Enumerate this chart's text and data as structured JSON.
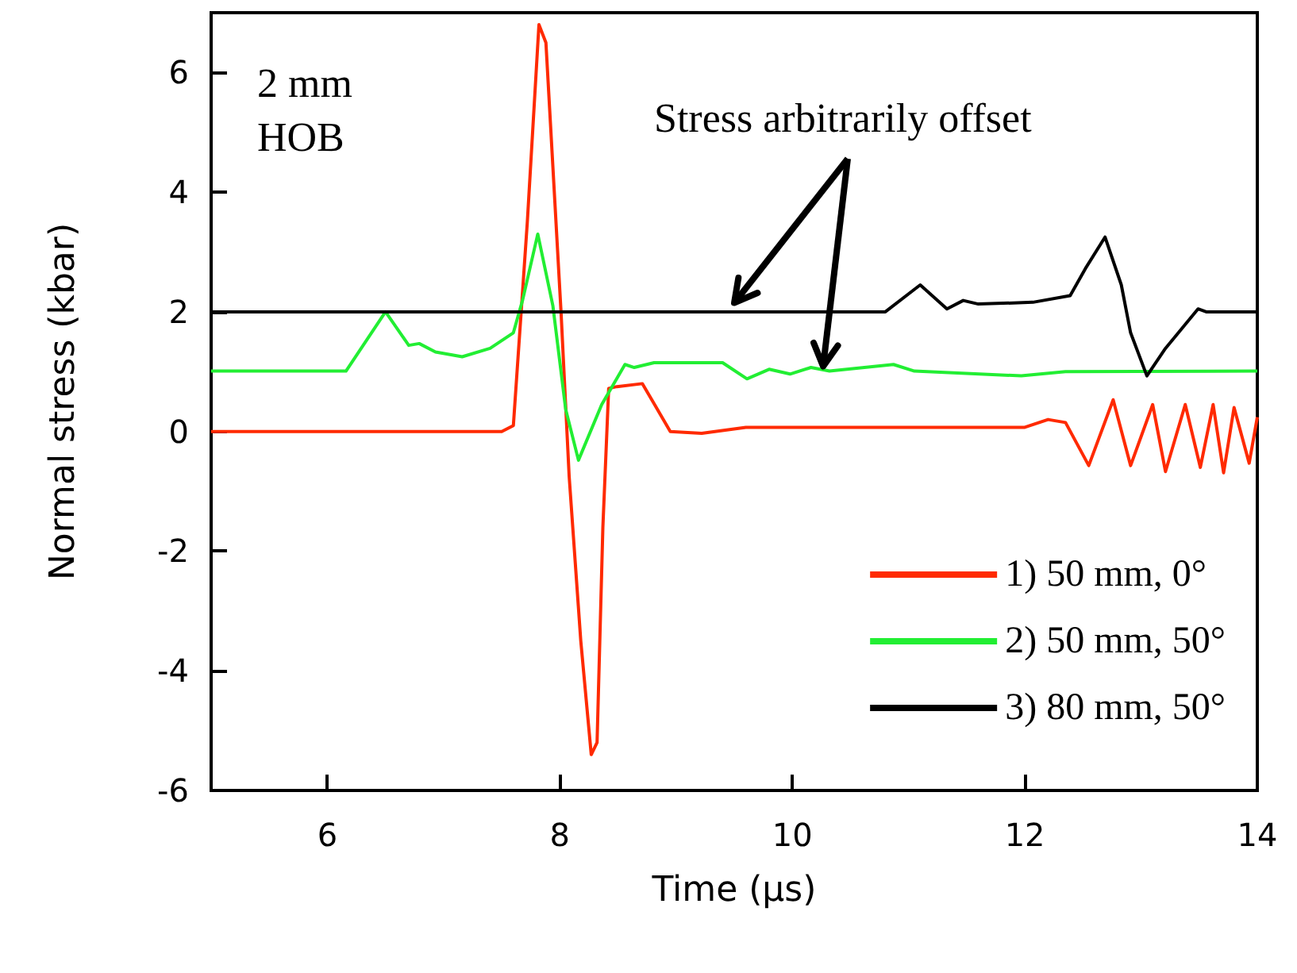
{
  "chart_data": {
    "type": "line",
    "xlabel": "Time (µs)",
    "ylabel": "Normal stress (kbar)",
    "xlim": [
      5,
      14
    ],
    "xticks": [
      6,
      8,
      10,
      12,
      14
    ],
    "ylim": [
      -6,
      7
    ],
    "yticks": [
      -6,
      -4,
      -2,
      0,
      2,
      4,
      6
    ],
    "grid": false,
    "legend": "bottom right",
    "marker": "none",
    "line_style": "solid",
    "annotations": [
      "2 mm\nHOB",
      {
        "text": "Stress arbitrarily offset",
        "x": 9.5,
        "y": 2.15
      }
    ],
    "series": [
      {
        "name": "1) 50 mm, 0°",
        "color": "#ff2a00",
        "x": [
          5,
          7.5,
          7.6,
          7.72,
          7.82,
          7.88,
          8.01,
          8.08,
          8.18,
          8.27,
          8.32,
          8.37,
          8.42,
          8.49,
          8.71,
          8.95,
          9.22,
          9.6,
          12.0,
          12.2,
          12.35,
          12.55,
          12.76,
          12.91,
          13.1,
          13.21,
          13.38,
          13.51,
          13.62,
          13.71,
          13.8,
          13.93,
          14.0
        ],
        "values": [
          0,
          0,
          0.1,
          3.5,
          6.8,
          6.5,
          2,
          -0.75,
          -3.5,
          -5.4,
          -5.2,
          -1.6,
          0.72,
          0.75,
          0.8,
          0,
          -0.03,
          0.07,
          0.07,
          0.2,
          0.15,
          -0.57,
          0.53,
          -0.57,
          0.45,
          -0.67,
          0.45,
          -0.6,
          0.45,
          -0.69,
          0.4,
          -0.53,
          0.24
        ]
      },
      {
        "name": "2) 50 mm, 50°",
        "color": "#22ee33",
        "x": [
          5,
          6.16,
          6.5,
          6.7,
          6.79,
          6.93,
          7.16,
          7.4,
          7.6,
          7.68,
          7.81,
          7.94,
          8.01,
          8.05,
          8.16,
          8.36,
          8.56,
          8.64,
          8.81,
          9.4,
          9.61,
          9.8,
          9.98,
          10.16,
          10.32,
          10.87,
          11.05,
          11.97,
          12.35,
          14.0
        ],
        "values": [
          1.01,
          1.01,
          2.0,
          1.44,
          1.47,
          1.33,
          1.25,
          1.39,
          1.65,
          2.2,
          3.3,
          2.1,
          1.0,
          0.37,
          -0.48,
          0.45,
          1.12,
          1.07,
          1.15,
          1.15,
          0.88,
          1.04,
          0.96,
          1.07,
          1.01,
          1.12,
          1.01,
          0.93,
          1.0,
          1.01
        ]
      },
      {
        "name": "3) 80 mm, 50°",
        "color": "#000000",
        "x": [
          5,
          10.8,
          11.1,
          11.33,
          11.47,
          11.6,
          12.07,
          12.39,
          12.52,
          12.69,
          12.83,
          12.91,
          13.05,
          13.21,
          13.49,
          13.56,
          14.0
        ],
        "values": [
          2,
          2,
          2.45,
          2.05,
          2.19,
          2.13,
          2.16,
          2.27,
          2.72,
          3.25,
          2.45,
          1.65,
          0.93,
          1.39,
          2.05,
          2.0,
          2.0
        ]
      }
    ]
  }
}
